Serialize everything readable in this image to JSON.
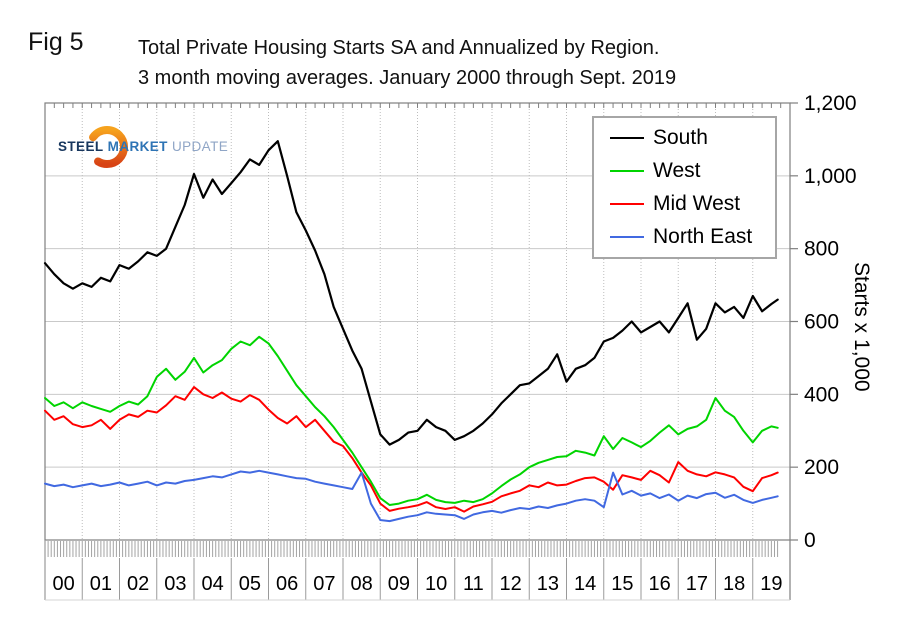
{
  "header": {
    "fig_label": "Fig 5",
    "title_line1": "Total Private Housing Starts SA and Annualized by Region.",
    "title_line2": "3 month moving averages. January 2000 through Sept. 2019"
  },
  "logo": {
    "steel": "STEEL",
    "market": "MARKET",
    "update": "UPDATE"
  },
  "chart_data": {
    "type": "line",
    "title": "Total Private Housing Starts SA and Annualized by Region. 3 month moving averages. January 2000 through Sept. 2019",
    "ylabel": "Starts x 1,000",
    "ylim": [
      0,
      1200
    ],
    "y_ticks": [
      "0",
      "200",
      "400",
      "600",
      "800",
      "1,000",
      "1,200"
    ],
    "x_year_labels": [
      "00",
      "01",
      "02",
      "03",
      "04",
      "05",
      "06",
      "07",
      "08",
      "09",
      "10",
      "11",
      "12",
      "13",
      "14",
      "15",
      "16",
      "17",
      "18",
      "19"
    ],
    "x_unit": "year (quarterly samples, Jan 2000 through Sept 2019)",
    "legend_position": "top-right",
    "grid": {
      "horizontal": "solid",
      "vertical": "dotted"
    },
    "x": [
      2000.0,
      2000.25,
      2000.5,
      2000.75,
      2001.0,
      2001.25,
      2001.5,
      2001.75,
      2002.0,
      2002.25,
      2002.5,
      2002.75,
      2003.0,
      2003.25,
      2003.5,
      2003.75,
      2004.0,
      2004.25,
      2004.5,
      2004.75,
      2005.0,
      2005.25,
      2005.5,
      2005.75,
      2006.0,
      2006.25,
      2006.5,
      2006.75,
      2007.0,
      2007.25,
      2007.5,
      2007.75,
      2008.0,
      2008.25,
      2008.5,
      2008.75,
      2009.0,
      2009.25,
      2009.5,
      2009.75,
      2010.0,
      2010.25,
      2010.5,
      2010.75,
      2011.0,
      2011.25,
      2011.5,
      2011.75,
      2012.0,
      2012.25,
      2012.5,
      2012.75,
      2013.0,
      2013.25,
      2013.5,
      2013.75,
      2014.0,
      2014.25,
      2014.5,
      2014.75,
      2015.0,
      2015.25,
      2015.5,
      2015.75,
      2016.0,
      2016.25,
      2016.5,
      2016.75,
      2017.0,
      2017.25,
      2017.5,
      2017.75,
      2018.0,
      2018.25,
      2018.5,
      2018.75,
      2019.0,
      2019.25,
      2019.5,
      2019.67
    ],
    "series": [
      {
        "name": "South",
        "color": "#000000",
        "values": [
          760,
          730,
          705,
          690,
          705,
          695,
          720,
          710,
          755,
          745,
          765,
          790,
          780,
          800,
          860,
          920,
          1005,
          940,
          990,
          950,
          980,
          1010,
          1045,
          1030,
          1070,
          1095,
          1000,
          900,
          850,
          795,
          730,
          640,
          580,
          520,
          470,
          380,
          290,
          262,
          275,
          295,
          300,
          330,
          310,
          300,
          275,
          285,
          300,
          320,
          345,
          375,
          400,
          425,
          430,
          450,
          470,
          510,
          435,
          470,
          480,
          500,
          545,
          555,
          575,
          600,
          570,
          585,
          600,
          570,
          610,
          650,
          550,
          580,
          650,
          625,
          640,
          610,
          670,
          628,
          648,
          660
        ]
      },
      {
        "name": "West",
        "color": "#00d400",
        "values": [
          390,
          368,
          378,
          362,
          378,
          368,
          360,
          352,
          368,
          380,
          372,
          395,
          448,
          470,
          440,
          462,
          500,
          460,
          480,
          494,
          525,
          545,
          535,
          558,
          540,
          505,
          465,
          425,
          395,
          365,
          340,
          310,
          275,
          240,
          200,
          160,
          115,
          96,
          100,
          108,
          112,
          124,
          110,
          104,
          102,
          108,
          104,
          112,
          128,
          148,
          166,
          180,
          200,
          212,
          220,
          228,
          230,
          245,
          240,
          232,
          285,
          250,
          280,
          268,
          255,
          272,
          295,
          315,
          290,
          305,
          312,
          330,
          390,
          355,
          338,
          300,
          268,
          300,
          312,
          308
        ]
      },
      {
        "name": "Mid West",
        "color": "#ff0000",
        "values": [
          355,
          330,
          340,
          318,
          310,
          315,
          330,
          305,
          330,
          345,
          338,
          355,
          350,
          370,
          395,
          385,
          420,
          400,
          390,
          405,
          388,
          380,
          398,
          385,
          358,
          335,
          320,
          340,
          310,
          330,
          300,
          270,
          258,
          225,
          185,
          150,
          100,
          80,
          86,
          90,
          95,
          104,
          90,
          85,
          90,
          78,
          92,
          98,
          105,
          120,
          128,
          135,
          150,
          145,
          158,
          150,
          152,
          162,
          170,
          172,
          160,
          138,
          178,
          172,
          165,
          190,
          178,
          158,
          214,
          190,
          180,
          175,
          186,
          180,
          172,
          146,
          134,
          170,
          178,
          185
        ]
      },
      {
        "name": "North East",
        "color": "#4169e1",
        "values": [
          155,
          148,
          152,
          145,
          150,
          155,
          148,
          152,
          158,
          150,
          155,
          160,
          150,
          158,
          155,
          162,
          165,
          170,
          175,
          172,
          180,
          188,
          185,
          190,
          185,
          180,
          175,
          170,
          168,
          160,
          155,
          150,
          145,
          140,
          185,
          100,
          55,
          52,
          58,
          64,
          68,
          76,
          72,
          70,
          68,
          58,
          70,
          76,
          80,
          75,
          82,
          88,
          85,
          92,
          88,
          95,
          100,
          108,
          112,
          108,
          90,
          185,
          125,
          135,
          122,
          128,
          115,
          125,
          108,
          122,
          115,
          126,
          130,
          116,
          124,
          110,
          102,
          110,
          116,
          120
        ]
      }
    ]
  }
}
